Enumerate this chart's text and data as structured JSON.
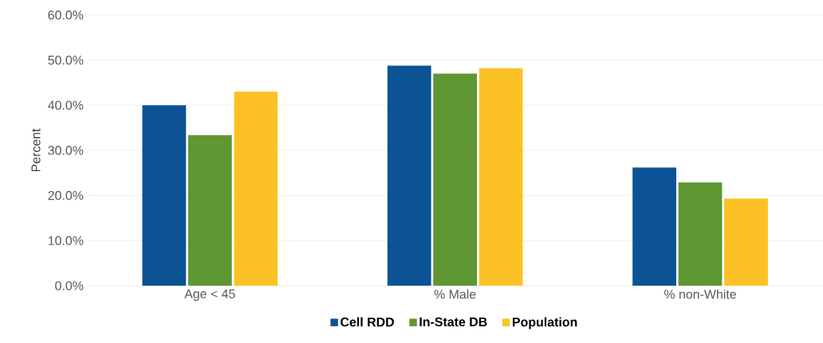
{
  "chart_data": {
    "type": "bar",
    "ylabel": "Percent",
    "categories": [
      "Age < 45",
      "% Male",
      "% non-White"
    ],
    "series": [
      {
        "name": "Cell RDD",
        "color": "#0b5394",
        "values": [
          40.0,
          48.8,
          26.2
        ]
      },
      {
        "name": "In-State DB",
        "color": "#5f9732",
        "values": [
          33.4,
          47.0,
          22.9
        ]
      },
      {
        "name": "Population",
        "color": "#fcc225",
        "values": [
          43.0,
          48.2,
          19.3
        ]
      }
    ],
    "ylim": [
      0,
      60
    ],
    "yticks": [
      {
        "value": 0,
        "label": "0.0%"
      },
      {
        "value": 10,
        "label": "10.0%"
      },
      {
        "value": 20,
        "label": "20.0%"
      },
      {
        "value": 30,
        "label": "30.0%"
      },
      {
        "value": 40,
        "label": "40.0%"
      },
      {
        "value": 50,
        "label": "50.0%"
      },
      {
        "value": 60,
        "label": "60.0%"
      }
    ],
    "grid": "y",
    "legend": "bottom"
  }
}
